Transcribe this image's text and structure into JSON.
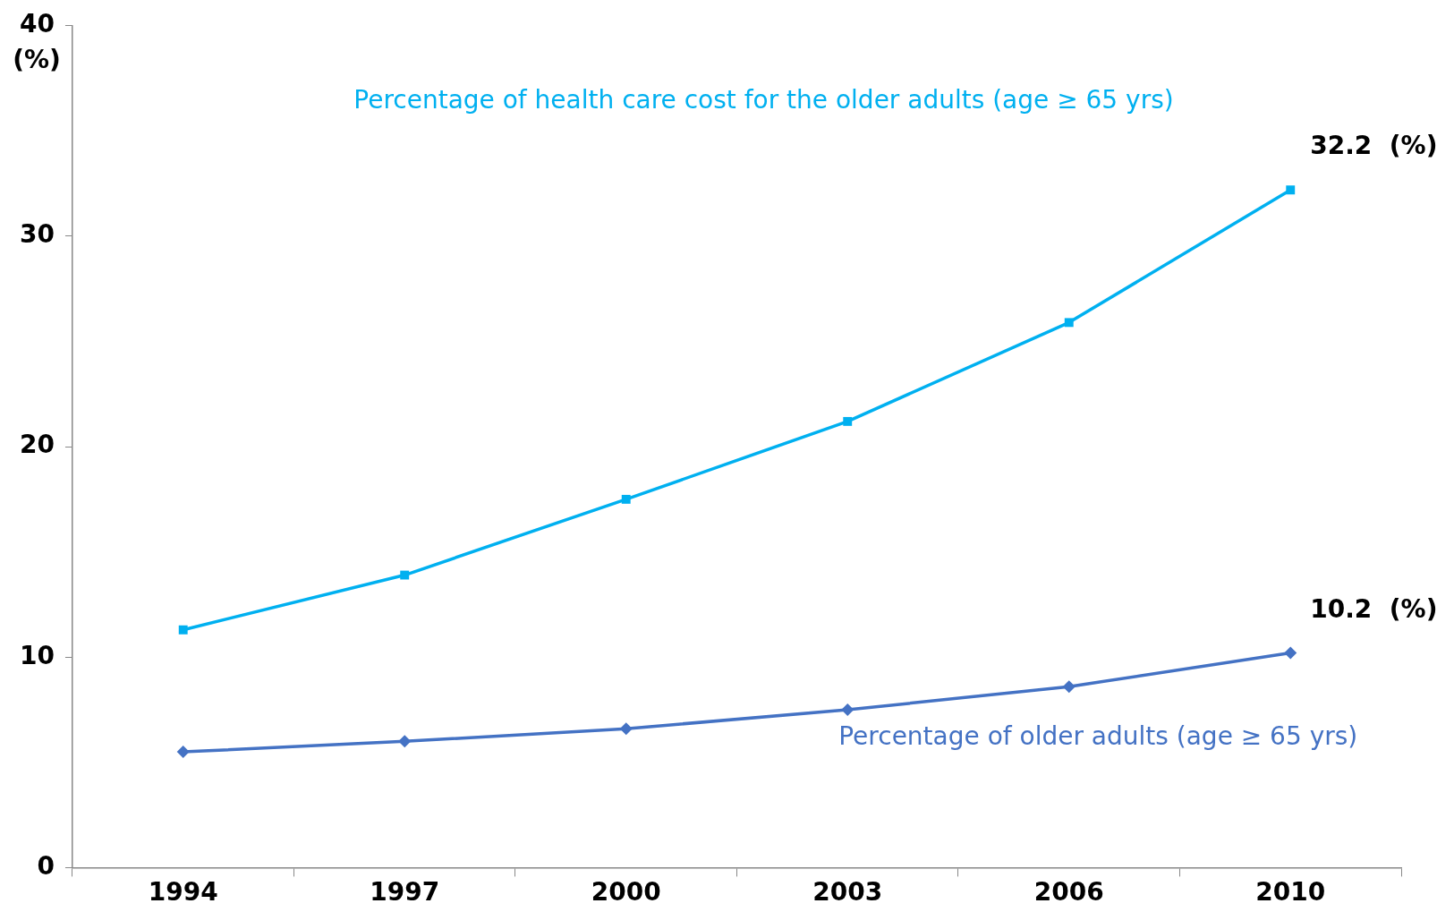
{
  "chart_data": {
    "type": "line",
    "ylabel": "(%)",
    "categories": [
      "1994",
      "1997",
      "2000",
      "2003",
      "2006",
      "2010"
    ],
    "series": [
      {
        "name": "Percentage of health care cost for the older adults (age ≥ 65 yrs)",
        "color": "#00b0f0",
        "marker": "square",
        "values": [
          11.3,
          13.9,
          17.5,
          21.2,
          25.9,
          32.2
        ],
        "value_labels": [
          null,
          null,
          null,
          null,
          null,
          "32.2  (%)"
        ]
      },
      {
        "name": "Percentage of older adults (age ≥ 65 yrs)",
        "color": "#4472c4",
        "marker": "diamond",
        "values": [
          5.5,
          6.0,
          6.6,
          7.5,
          8.6,
          10.2
        ],
        "value_labels": [
          null,
          null,
          null,
          null,
          null,
          "10.2  (%)"
        ]
      }
    ],
    "ylim": [
      0,
      40
    ],
    "yticks": [
      0,
      10,
      20,
      30,
      40
    ],
    "grid": false,
    "legend": false,
    "line_style": "solid"
  }
}
